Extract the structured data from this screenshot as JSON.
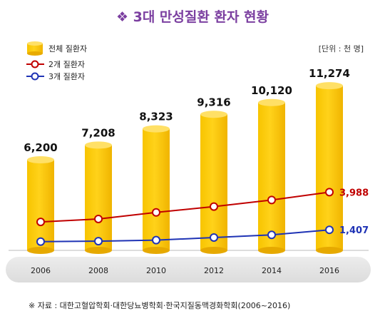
{
  "chart_data": {
    "type": "bar",
    "title": "❖ 3대 만성질환 환자 현황",
    "unit": "[단위 : 천 명]",
    "categories": [
      "2006",
      "2008",
      "2010",
      "2012",
      "2014",
      "2016"
    ],
    "series": [
      {
        "name": "전체 질환자",
        "kind": "bar",
        "color": "#f5be00",
        "values": [
          6200,
          7208,
          8323,
          9316,
          10120,
          11274
        ],
        "labels": [
          "6,200",
          "7,208",
          "8,323",
          "9,316",
          "10,120",
          "11,274"
        ]
      },
      {
        "name": "2개 질환자",
        "kind": "line",
        "color": "#c00000",
        "values": [
          1950,
          2150,
          2600,
          3000,
          3450,
          3988
        ],
        "end_label": "3,988"
      },
      {
        "name": "3개 질환자",
        "kind": "line",
        "color": "#1f33b5",
        "values": [
          600,
          630,
          700,
          880,
          1060,
          1407
        ],
        "end_label": "1,407"
      }
    ],
    "ylim": [
      0,
      12500
    ],
    "grid": false,
    "legend": "top-left",
    "source": "※ 자료 : 대한고혈압학회·대한당뇨병학회·한국지질동맥경화학회(2006~2016)"
  }
}
